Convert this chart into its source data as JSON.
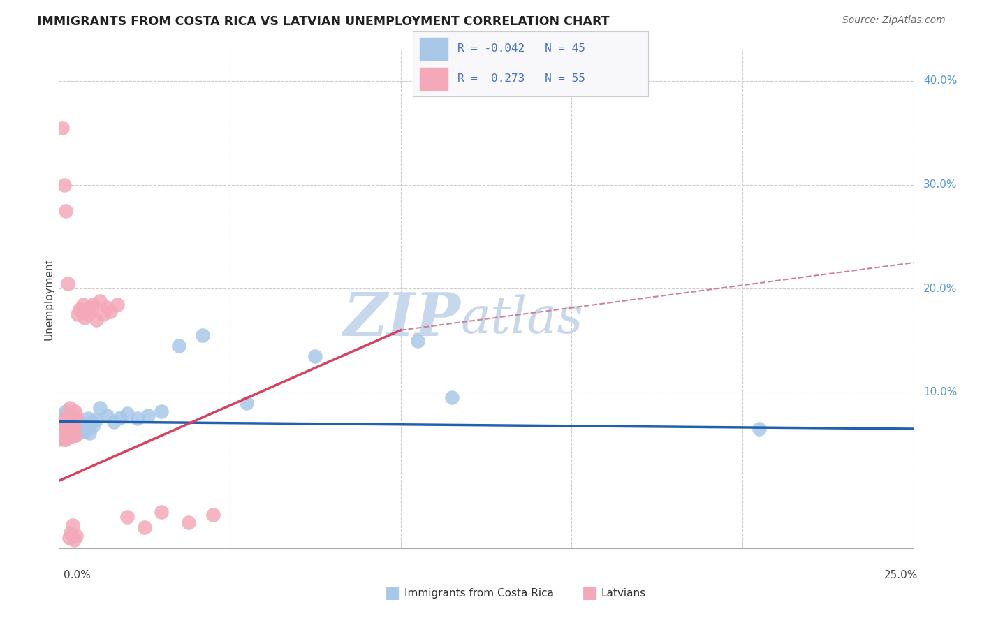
{
  "title": "IMMIGRANTS FROM COSTA RICA VS LATVIAN UNEMPLOYMENT CORRELATION CHART",
  "source": "Source: ZipAtlas.com",
  "ylabel": "Unemployment",
  "xlim": [
    0.0,
    25.0
  ],
  "ylim": [
    -5.0,
    43.0
  ],
  "blue_color": "#a8c8e8",
  "pink_color": "#f4a8b8",
  "blue_line_color": "#2060b0",
  "pink_line_color": "#d84060",
  "dashed_line_color": "#d08090",
  "title_color": "#222222",
  "source_color": "#666666",
  "legend_text_color": "#4472c4",
  "background_color": "#ffffff",
  "grid_color": "#cccccc",
  "watermark_zip_color": "#c8d8ec",
  "watermark_atlas_color": "#c8d8ec",
  "blue_scatter_x": [
    0.05,
    0.08,
    0.1,
    0.12,
    0.15,
    0.18,
    0.2,
    0.22,
    0.25,
    0.28,
    0.3,
    0.32,
    0.35,
    0.38,
    0.4,
    0.42,
    0.45,
    0.48,
    0.5,
    0.55,
    0.6,
    0.65,
    0.7,
    0.75,
    0.8,
    0.85,
    0.9,
    0.95,
    1.0,
    1.1,
    1.2,
    1.4,
    1.6,
    1.8,
    2.0,
    2.3,
    2.6,
    3.0,
    3.5,
    4.2,
    5.5,
    7.5,
    10.5,
    11.5,
    20.5
  ],
  "blue_scatter_y": [
    6.5,
    7.2,
    7.8,
    6.0,
    5.5,
    7.5,
    8.2,
    6.8,
    7.0,
    6.2,
    7.4,
    6.9,
    7.6,
    5.8,
    6.3,
    7.1,
    6.7,
    5.9,
    6.4,
    7.3,
    6.5,
    6.8,
    7.0,
    6.2,
    6.9,
    7.5,
    6.1,
    7.2,
    6.8,
    7.4,
    8.5,
    7.8,
    7.2,
    7.6,
    8.0,
    7.5,
    7.8,
    8.2,
    14.5,
    15.5,
    9.0,
    13.5,
    15.0,
    9.5,
    6.5
  ],
  "pink_scatter_x": [
    0.02,
    0.04,
    0.06,
    0.08,
    0.1,
    0.12,
    0.14,
    0.16,
    0.18,
    0.2,
    0.22,
    0.24,
    0.26,
    0.28,
    0.3,
    0.32,
    0.34,
    0.36,
    0.38,
    0.4,
    0.42,
    0.44,
    0.46,
    0.48,
    0.5,
    0.55,
    0.6,
    0.65,
    0.7,
    0.75,
    0.8,
    0.85,
    0.9,
    0.95,
    1.0,
    1.1,
    1.2,
    1.3,
    1.4,
    1.5,
    1.7,
    2.0,
    2.5,
    3.0,
    3.8,
    4.5,
    0.1,
    0.15,
    0.2,
    0.25,
    0.3,
    0.35,
    0.4,
    0.45,
    0.5
  ],
  "pink_scatter_y": [
    5.5,
    6.0,
    5.8,
    6.5,
    7.0,
    6.2,
    5.9,
    6.8,
    7.2,
    5.5,
    6.3,
    7.8,
    6.1,
    5.7,
    7.5,
    8.5,
    6.9,
    7.2,
    5.8,
    6.4,
    6.7,
    7.0,
    8.2,
    5.9,
    7.8,
    17.5,
    18.0,
    17.8,
    18.5,
    17.2,
    18.0,
    17.5,
    18.2,
    17.8,
    18.5,
    17.0,
    18.8,
    17.5,
    18.2,
    17.8,
    18.5,
    -2.0,
    -3.0,
    -1.5,
    -2.5,
    -1.8,
    35.5,
    30.0,
    27.5,
    20.5,
    -4.0,
    -3.5,
    -2.8,
    -4.2,
    -3.8
  ],
  "blue_trend_x0": 0.0,
  "blue_trend_x1": 25.0,
  "blue_trend_y0": 7.2,
  "blue_trend_y1": 6.5,
  "pink_solid_x0": 0.0,
  "pink_solid_x1": 10.0,
  "pink_solid_y0": 1.5,
  "pink_solid_y1": 16.0,
  "pink_dashed_x0": 10.0,
  "pink_dashed_x1": 25.0,
  "pink_dashed_y0": 16.0,
  "pink_dashed_y1": 22.5
}
